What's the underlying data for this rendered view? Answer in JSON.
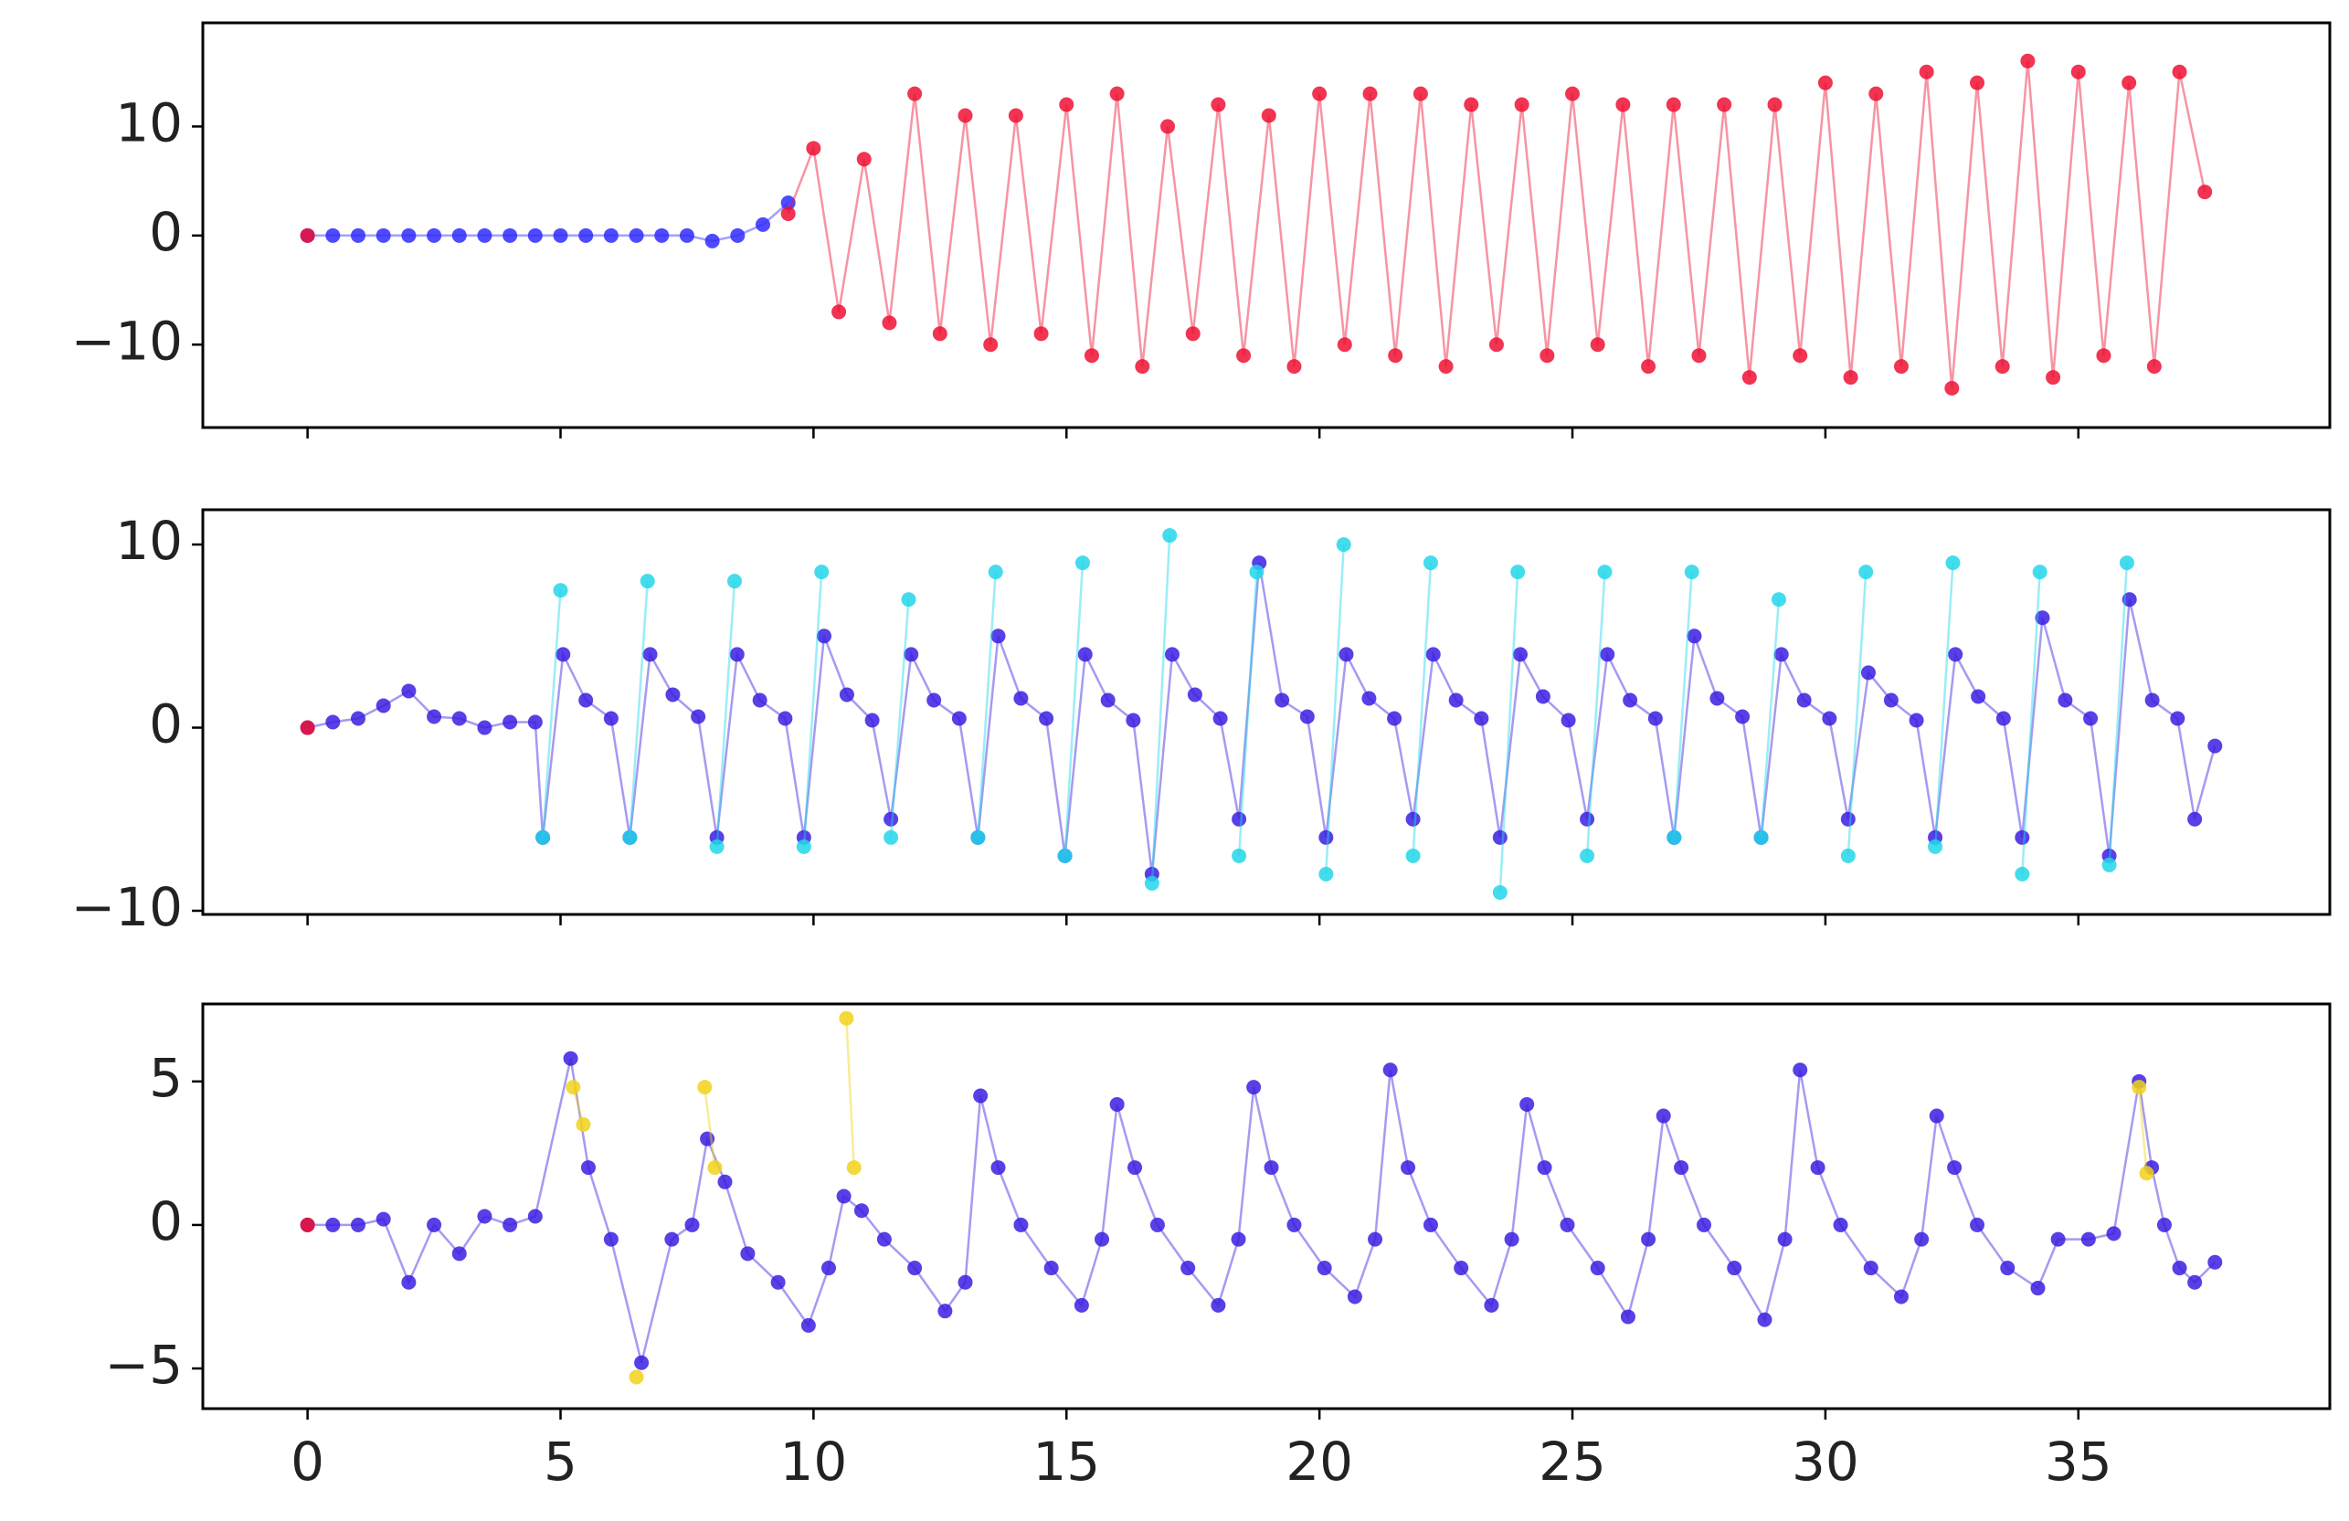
{
  "chart_data": [
    {
      "type": "line",
      "xlim": [
        -2.07,
        39.97
      ],
      "ylim": [
        -17.6,
        19.5
      ],
      "xticks": [
        0,
        5,
        10,
        15,
        20,
        25,
        30,
        35
      ],
      "xticklabels": false,
      "yticks": [
        {
          "value": -10,
          "label": "−10"
        },
        0,
        10
      ],
      "series": [
        {
          "color": "#2f2cff",
          "x": [
            0,
            0.5,
            1,
            1.5,
            2,
            2.5,
            3,
            3.5,
            4,
            4.5,
            5,
            5.5,
            6,
            6.5,
            7,
            7.5,
            8,
            8.5,
            9,
            9.5
          ],
          "values": [
            0,
            0,
            0,
            0,
            0,
            0,
            0,
            0,
            0,
            0,
            0,
            0,
            0,
            0,
            0,
            0,
            -0.5,
            0,
            1,
            3
          ]
        },
        {
          "color": "#ee1133",
          "x": [
            9.5,
            10,
            10.5,
            11,
            11.5,
            12,
            12.5,
            13,
            13.5,
            14,
            14.5,
            15,
            15.5,
            16,
            16.5,
            17,
            17.5,
            18,
            18.5,
            19,
            19.5,
            20,
            20.5,
            21,
            21.5,
            22,
            22.5,
            23,
            23.5,
            24,
            24.5,
            25,
            25.5,
            26,
            26.5,
            27,
            27.5,
            28,
            28.5,
            29,
            29.5,
            30,
            30.5,
            31,
            31.5,
            32,
            32.5,
            33,
            33.5,
            34,
            34.5,
            35,
            35.5,
            36,
            36.5,
            37,
            37.5
          ],
          "values": [
            2,
            8,
            -7,
            7,
            -8,
            13,
            -9,
            11,
            -10,
            11,
            -9,
            12,
            -11,
            13,
            -12,
            10,
            -9,
            12,
            -11,
            11,
            -12,
            13,
            -10,
            13,
            -11,
            13,
            -12,
            12,
            -10,
            12,
            -11,
            13,
            -10,
            12,
            -12,
            12,
            -11,
            12,
            -13,
            12,
            -11,
            14,
            -13,
            13,
            -12,
            15,
            -14,
            14,
            -12,
            16,
            -13,
            15,
            -11,
            14,
            -12,
            15,
            4
          ]
        },
        {
          "color": "#ee1133",
          "x": [
            0
          ],
          "values": [
            0
          ]
        }
      ]
    },
    {
      "type": "line",
      "xlim": [
        -2.07,
        39.97
      ],
      "ylim": [
        -10.2,
        11.9
      ],
      "xticks": [
        0,
        5,
        10,
        15,
        20,
        25,
        30,
        35
      ],
      "xticklabels": false,
      "yticks": [
        {
          "value": -10,
          "label": "−10"
        },
        0,
        10
      ],
      "series": [
        {
          "color": "#3a1fe0",
          "x": [
            0,
            0.5,
            1,
            1.5,
            2,
            2.5,
            3,
            3.5,
            4,
            4.5,
            4.65,
            5.05,
            5.5,
            6,
            6.37,
            6.77,
            7.22,
            7.72,
            8.09,
            8.49,
            8.94,
            9.44,
            9.81,
            10.21,
            10.66,
            11.16,
            11.53,
            11.93,
            12.38,
            12.88,
            13.25,
            13.65,
            14.1,
            14.6,
            14.97,
            15.37,
            15.82,
            16.32,
            16.69,
            17.09,
            17.54,
            18.04,
            18.41,
            18.81,
            19.26,
            19.76,
            20.13,
            20.53,
            20.98,
            21.48,
            21.85,
            22.25,
            22.7,
            23.2,
            23.57,
            23.97,
            24.42,
            24.92,
            25.29,
            25.69,
            26.14,
            26.64,
            27.01,
            27.41,
            27.86,
            28.36,
            28.73,
            29.13,
            29.58,
            30.08,
            30.45,
            30.85,
            31.3,
            31.8,
            32.17,
            32.57,
            33.02,
            33.52,
            33.89,
            34.29,
            34.74,
            35.24,
            35.61,
            36.01,
            36.46,
            36.96,
            37.3,
            37.7
          ],
          "values": [
            0,
            0.3,
            0.5,
            1.2,
            2,
            0.6,
            0.5,
            0,
            0.3,
            0.3,
            -6,
            4,
            1.5,
            0.5,
            -6,
            4,
            1.8,
            0.6,
            -6,
            4,
            1.5,
            0.5,
            -6,
            5,
            1.8,
            0.4,
            -5,
            4,
            1.5,
            0.5,
            -6,
            5,
            1.6,
            0.5,
            -7,
            4,
            1.5,
            0.4,
            -8,
            4,
            1.8,
            0.5,
            -5,
            9,
            1.5,
            0.6,
            -6,
            4,
            1.6,
            0.5,
            -5,
            4,
            1.5,
            0.5,
            -6,
            4,
            1.7,
            0.4,
            -5,
            4,
            1.5,
            0.5,
            -6,
            5,
            1.6,
            0.6,
            -6,
            4,
            1.5,
            0.5,
            -5,
            3,
            1.5,
            0.4,
            -6,
            4,
            1.7,
            0.5,
            -6,
            6,
            1.5,
            0.5,
            -7,
            7,
            1.5,
            0.5,
            -5,
            -1
          ]
        },
        {
          "color": "#22d6ea",
          "x": [
            4.65,
            5,
            5,
            6.37,
            6.72,
            6.72,
            8.09,
            8.44,
            8.44,
            9.81,
            10.16,
            10.16,
            11.53,
            11.88,
            11.88,
            13.25,
            13.6,
            13.6,
            14.97,
            15.32,
            15.32,
            16.69,
            17.04,
            17.04,
            18.41,
            18.76,
            18.76,
            20.13,
            20.48,
            20.48,
            21.85,
            22.2,
            22.2,
            23.57,
            23.92,
            23.92,
            25.29,
            25.64,
            25.64,
            27.01,
            27.36,
            27.36,
            28.73,
            29.08,
            29.08,
            30.45,
            30.8,
            30.8,
            32.17,
            32.52,
            32.52,
            33.89,
            34.24,
            34.24,
            35.61,
            35.96
          ],
          "values": [
            -6,
            7.5,
            null,
            -6,
            8,
            null,
            -6.5,
            8,
            null,
            -6.5,
            8.5,
            null,
            -6,
            7,
            null,
            -6,
            8.5,
            null,
            -7,
            9,
            null,
            -8.5,
            10.5,
            null,
            -7,
            8.5,
            null,
            -8,
            10,
            null,
            -7,
            9,
            null,
            -9,
            8.5,
            null,
            -7,
            8.5,
            null,
            -6,
            8.5,
            null,
            -6,
            7,
            null,
            -7,
            8.5,
            null,
            -6.5,
            9,
            null,
            -8,
            8.5,
            null,
            -7.5,
            9
          ]
        },
        {
          "color": "#ee1133",
          "x": [
            0
          ],
          "values": [
            0
          ]
        }
      ]
    },
    {
      "type": "line",
      "xlim": [
        -2.07,
        39.97
      ],
      "ylim": [
        -6.4,
        7.7
      ],
      "xticks": [
        0,
        5,
        10,
        15,
        20,
        25,
        30,
        35
      ],
      "xticklabels": true,
      "yticks": [
        {
          "value": -5,
          "label": "−5"
        },
        0,
        5
      ],
      "series": [
        {
          "color": "#3a1fe0",
          "x": [
            0,
            0.5,
            1,
            1.5,
            2,
            2.5,
            3,
            3.5,
            4,
            4.5,
            5.2,
            5.55,
            6,
            6.6,
            7.2,
            7.6,
            7.9,
            8.25,
            8.7,
            9.3,
            9.9,
            10.3,
            10.6,
            10.95,
            11.4,
            12,
            12.6,
            13,
            13.3,
            13.65,
            14.1,
            14.7,
            15.3,
            15.7,
            16,
            16.35,
            16.8,
            17.4,
            18,
            18.4,
            18.7,
            19.05,
            19.5,
            20.1,
            20.7,
            21.1,
            21.4,
            21.75,
            22.2,
            22.8,
            23.4,
            23.8,
            24.1,
            24.45,
            24.9,
            25.5,
            26.1,
            26.5,
            26.8,
            27.15,
            27.6,
            28.2,
            28.8,
            29.2,
            29.5,
            29.85,
            30.3,
            30.9,
            31.5,
            31.9,
            32.2,
            32.55,
            33,
            33.6,
            34.2,
            34.6,
            35.2,
            35.7,
            36.2,
            36.45,
            36.7,
            37,
            37.3,
            37.7
          ],
          "values": [
            0,
            0,
            0,
            0.2,
            -2,
            0,
            -1,
            0.3,
            0,
            0.3,
            5.8,
            2,
            -0.5,
            -4.8,
            -0.5,
            0,
            3,
            1.5,
            -1,
            -2,
            -3.5,
            -1.5,
            1,
            0.5,
            -0.5,
            -1.5,
            -3,
            -2,
            4.5,
            2,
            0,
            -1.5,
            -2.8,
            -0.5,
            4.2,
            2,
            0,
            -1.5,
            -2.8,
            -0.5,
            4.8,
            2,
            0,
            -1.5,
            -2.5,
            -0.5,
            5.4,
            2,
            0,
            -1.5,
            -2.8,
            -0.5,
            4.2,
            2,
            0,
            -1.5,
            -3.2,
            -0.5,
            3.8,
            2,
            0,
            -1.5,
            -3.3,
            -0.5,
            5.4,
            2,
            0,
            -1.5,
            -2.5,
            -0.5,
            3.8,
            2,
            0,
            -1.5,
            -2.2,
            -0.5,
            -0.5,
            -0.3,
            5,
            2,
            0,
            -1.5,
            -2,
            -1.3
          ]
        },
        {
          "color": "#f2d21a",
          "x": [
            5.25,
            5.45,
            5.45,
            6.5,
            6.5,
            7.85,
            8.05,
            8.05,
            10.65,
            10.8,
            10.8,
            36.2,
            36.35
          ],
          "values": [
            4.8,
            3.5,
            null,
            -5.3,
            null,
            4.8,
            2,
            null,
            7.2,
            2,
            null,
            4.8,
            1.8
          ]
        },
        {
          "color": "#ee1133",
          "x": [
            0
          ],
          "values": [
            0
          ]
        }
      ]
    }
  ]
}
